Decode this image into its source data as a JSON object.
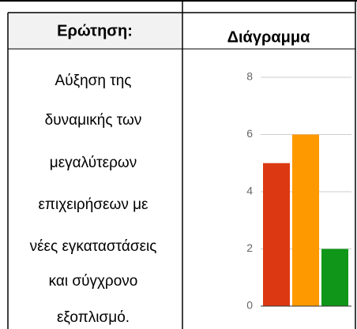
{
  "table": {
    "header": [
      "Ερώτηση:",
      "Διάγραμμα"
    ],
    "question_lines": [
      "Αύξηση της",
      "δυναμικής των",
      "μεγαλύτερων",
      "επιχειρήσεων με",
      "νέες εγκαταστάσεις",
      "και σύγχρονο",
      "εξοπλισμό."
    ]
  },
  "chart_data": {
    "type": "bar",
    "categories": [
      null,
      null,
      null
    ],
    "values": [
      5,
      6,
      2
    ],
    "colors": [
      "#dc3912",
      "#ff9900",
      "#109618"
    ],
    "ylim": [
      0,
      8
    ],
    "yticks": [
      0,
      2,
      4,
      6,
      8
    ],
    "grid": true
  }
}
